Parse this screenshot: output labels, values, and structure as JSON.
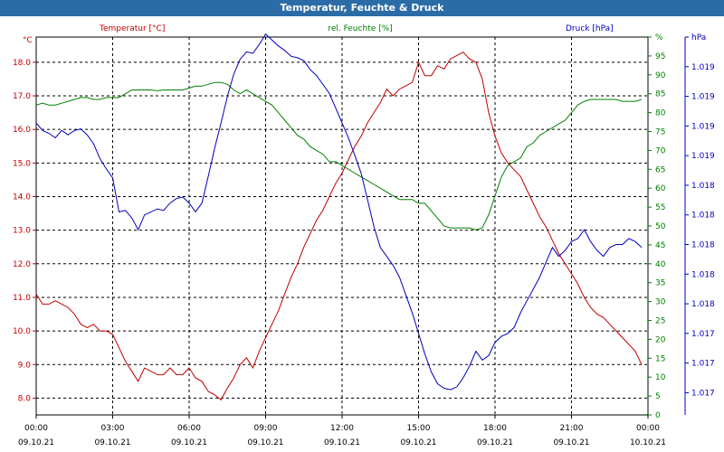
{
  "window": {
    "title": "Temperatur, Feuchte & Druck"
  },
  "colors": {
    "temperature": "#c00000",
    "humidity": "#008000",
    "pressure": "#0000c0",
    "title_bar": "#2b6ca6"
  },
  "chart_data": {
    "type": "line",
    "title": "Temperatur, Feuchte & Druck",
    "x_ticks": [
      {
        "hours": 0,
        "time": "00:00",
        "date": "09.10.21"
      },
      {
        "hours": 3,
        "time": "03:00",
        "date": "09.10.21"
      },
      {
        "hours": 6,
        "time": "06:00",
        "date": "09.10.21"
      },
      {
        "hours": 9,
        "time": "09:00",
        "date": "09.10.21"
      },
      {
        "hours": 12,
        "time": "12:00",
        "date": "09.10.21"
      },
      {
        "hours": 15,
        "time": "15:00",
        "date": "09.10.21"
      },
      {
        "hours": 18,
        "time": "18:00",
        "date": "09.10.21"
      },
      {
        "hours": 21,
        "time": "21:00",
        "date": "09.10.21"
      },
      {
        "hours": 24,
        "time": "00:00",
        "date": "10.10.21"
      }
    ],
    "xlim": [
      0,
      24
    ],
    "grid": true,
    "axes": {
      "temperature": {
        "label": "Temperatur [°C]",
        "unit": "°C",
        "ylim": [
          7.5,
          18.75
        ],
        "ticks": [
          8.0,
          9.0,
          10.0,
          11.0,
          12.0,
          13.0,
          14.0,
          15.0,
          16.0,
          17.0,
          18.0
        ],
        "tick_labels": [
          "8.0",
          "9.0",
          "10.0",
          "11.0",
          "12.0",
          "13.0",
          "14.0",
          "15.0",
          "16.0",
          "17.0",
          "18.0"
        ]
      },
      "humidity": {
        "label": "rel. Feuchte [%]",
        "unit": "%",
        "ylim": [
          0,
          100
        ],
        "ticks": [
          0,
          5,
          10,
          15,
          20,
          25,
          30,
          35,
          40,
          45,
          50,
          55,
          60,
          65,
          70,
          75,
          80,
          85,
          90,
          95,
          100
        ],
        "tick_labels": [
          "0",
          "5",
          "10",
          "15",
          "20",
          "25",
          "30",
          "35",
          "40",
          "45",
          "50",
          "55",
          "60",
          "65",
          "70",
          "75",
          "80",
          "85",
          "90",
          "95",
          "%"
        ]
      },
      "pressure": {
        "label": "Druck [hPa]",
        "unit": "hPa",
        "ylim": [
          1016.75,
          1019.3
        ],
        "ticks": [
          1016.9,
          1017.1,
          1017.3,
          1017.5,
          1017.7,
          1017.9,
          1018.1,
          1018.3,
          1018.5,
          1018.7,
          1018.9,
          1019.1,
          1019.3
        ],
        "tick_labels": [
          "1.017",
          "1.017",
          "1.017",
          "1.018",
          "1.018",
          "1.018",
          "1.018",
          "1.018",
          "1.019",
          "1.019",
          "1.019",
          "1.019",
          "hPa"
        ]
      }
    },
    "series": [
      {
        "name": "Temperatur [°C]",
        "axis": "temperature",
        "color": "#c00000",
        "x": [
          0,
          0.25,
          0.5,
          0.75,
          1.0,
          1.25,
          1.5,
          1.75,
          2.0,
          2.25,
          2.5,
          2.75,
          3.0,
          3.25,
          3.5,
          3.75,
          4.0,
          4.25,
          4.5,
          4.75,
          5.0,
          5.25,
          5.5,
          5.75,
          6.0,
          6.25,
          6.5,
          6.75,
          7.0,
          7.25,
          7.5,
          7.75,
          8.0,
          8.25,
          8.5,
          8.75,
          9.0,
          9.25,
          9.5,
          9.75,
          10.0,
          10.25,
          10.5,
          10.75,
          11.0,
          11.25,
          11.5,
          11.75,
          12.0,
          12.25,
          12.5,
          12.75,
          13.0,
          13.25,
          13.5,
          13.75,
          14.0,
          14.25,
          14.5,
          14.75,
          15.0,
          15.25,
          15.5,
          15.75,
          16.0,
          16.25,
          16.5,
          16.75,
          17.0,
          17.25,
          17.5,
          17.75,
          18.0,
          18.25,
          18.5,
          18.75,
          19.0,
          19.25,
          19.5,
          19.75,
          20.0,
          20.25,
          20.5,
          20.75,
          21.0,
          21.25,
          21.5,
          21.75,
          22.0,
          22.25,
          22.5,
          22.75,
          23.0,
          23.25,
          23.5,
          23.75
        ],
        "values": [
          11.1,
          10.8,
          10.8,
          10.9,
          10.8,
          10.7,
          10.5,
          10.2,
          10.1,
          10.2,
          10.0,
          10.0,
          9.9,
          9.5,
          9.1,
          8.8,
          8.5,
          8.9,
          8.8,
          8.7,
          8.7,
          8.9,
          8.7,
          8.7,
          8.9,
          8.6,
          8.5,
          8.2,
          8.1,
          7.95,
          8.3,
          8.6,
          9.0,
          9.2,
          8.9,
          9.4,
          9.8,
          10.2,
          10.6,
          11.1,
          11.6,
          12.0,
          12.5,
          12.9,
          13.3,
          13.6,
          14.0,
          14.4,
          14.7,
          15.1,
          15.5,
          15.8,
          16.2,
          16.5,
          16.8,
          17.2,
          17.0,
          17.2,
          17.3,
          17.4,
          18.0,
          17.6,
          17.6,
          17.9,
          17.8,
          18.1,
          18.2,
          18.3,
          18.1,
          18.0,
          17.5,
          16.5,
          15.8,
          15.3,
          15.0,
          14.8,
          14.6,
          14.2,
          13.8,
          13.4,
          13.1,
          12.7,
          12.3,
          12.0,
          11.7,
          11.4,
          11.0,
          10.7,
          10.5,
          10.4,
          10.2,
          10.0,
          9.8,
          9.6,
          9.4,
          9.0
        ]
      },
      {
        "name": "rel. Feuchte [%]",
        "axis": "humidity",
        "color": "#008000",
        "x": [
          0,
          0.25,
          0.5,
          0.75,
          1.0,
          1.25,
          1.5,
          1.75,
          2.0,
          2.25,
          2.5,
          2.75,
          3.0,
          3.25,
          3.5,
          3.75,
          4.0,
          4.25,
          4.5,
          4.75,
          5.0,
          5.25,
          5.5,
          5.75,
          6.0,
          6.25,
          6.5,
          6.75,
          7.0,
          7.25,
          7.5,
          7.75,
          8.0,
          8.25,
          8.5,
          8.75,
          9.0,
          9.25,
          9.5,
          9.75,
          10.0,
          10.25,
          10.5,
          10.75,
          11.0,
          11.25,
          11.5,
          11.75,
          12.0,
          12.25,
          12.5,
          12.75,
          13.0,
          13.25,
          13.5,
          13.75,
          14.0,
          14.25,
          14.5,
          14.75,
          15.0,
          15.25,
          15.5,
          15.75,
          16.0,
          16.25,
          16.5,
          16.75,
          17.0,
          17.25,
          17.5,
          17.75,
          18.0,
          18.25,
          18.5,
          18.75,
          19.0,
          19.25,
          19.5,
          19.75,
          20.0,
          20.25,
          20.5,
          20.75,
          21.0,
          21.25,
          21.5,
          21.75,
          22.0,
          22.25,
          22.5,
          22.75,
          23.0,
          23.25,
          23.5,
          23.75
        ],
        "values": [
          82,
          82.5,
          82,
          82,
          82.5,
          83,
          83.5,
          84,
          84,
          83.5,
          83.5,
          84,
          84,
          84,
          85,
          86,
          86,
          86,
          86,
          85.8,
          86,
          86,
          86,
          86,
          86.5,
          87,
          87,
          87.5,
          88,
          88,
          87.5,
          86,
          85,
          86,
          85,
          84,
          83,
          82,
          80,
          78,
          76,
          74,
          73,
          71,
          70,
          69,
          67,
          67,
          66,
          65,
          64,
          63,
          62,
          61,
          60,
          59,
          58,
          57,
          57,
          57,
          56,
          56,
          54,
          52,
          50,
          49.5,
          49.5,
          49.5,
          49.5,
          49,
          49.5,
          53,
          58,
          63,
          66,
          67,
          68,
          71,
          72,
          74,
          75,
          76,
          77,
          78,
          80,
          82,
          83,
          83.5,
          83.5,
          83.5,
          83.5,
          83.5,
          83,
          83,
          83,
          83.5
        ]
      },
      {
        "name": "Druck [hPa]",
        "axis": "pressure",
        "color": "#0000c0",
        "x": [
          0,
          0.25,
          0.5,
          0.75,
          1.0,
          1.25,
          1.5,
          1.75,
          2.0,
          2.25,
          2.5,
          2.75,
          3.0,
          3.25,
          3.5,
          3.75,
          4.0,
          4.25,
          4.5,
          4.75,
          5.0,
          5.25,
          5.5,
          5.75,
          6.0,
          6.25,
          6.5,
          6.75,
          7.0,
          7.25,
          7.5,
          7.75,
          8.0,
          8.25,
          8.5,
          8.75,
          9.0,
          9.25,
          9.5,
          9.75,
          10.0,
          10.25,
          10.5,
          10.75,
          11.0,
          11.25,
          11.5,
          11.75,
          12.0,
          12.25,
          12.5,
          12.75,
          13.0,
          13.25,
          13.5,
          13.75,
          14.0,
          14.25,
          14.5,
          14.75,
          15.0,
          15.25,
          15.5,
          15.75,
          16.0,
          16.25,
          16.5,
          16.75,
          17.0,
          17.25,
          17.5,
          17.75,
          18.0,
          18.25,
          18.5,
          18.75,
          19.0,
          19.25,
          19.5,
          19.75,
          20.0,
          20.25,
          20.5,
          20.75,
          21.0,
          21.25,
          21.5,
          21.75,
          22.0,
          22.25,
          22.5,
          22.75,
          23.0,
          23.25,
          23.5,
          23.75
        ],
        "values": [
          1018.72,
          1018.67,
          1018.65,
          1018.62,
          1018.67,
          1018.64,
          1018.67,
          1018.68,
          1018.64,
          1018.58,
          1018.48,
          1018.41,
          1018.35,
          1018.12,
          1018.13,
          1018.08,
          1018.0,
          1018.1,
          1018.12,
          1018.14,
          1018.13,
          1018.18,
          1018.21,
          1018.22,
          1018.18,
          1018.12,
          1018.18,
          1018.36,
          1018.55,
          1018.72,
          1018.9,
          1019.05,
          1019.15,
          1019.2,
          1019.19,
          1019.25,
          1019.32,
          1019.28,
          1019.24,
          1019.21,
          1019.17,
          1019.16,
          1019.14,
          1019.08,
          1019.04,
          1018.98,
          1018.92,
          1018.82,
          1018.72,
          1018.62,
          1018.5,
          1018.38,
          1018.2,
          1018.02,
          1017.88,
          1017.82,
          1017.76,
          1017.68,
          1017.56,
          1017.44,
          1017.3,
          1017.16,
          1017.04,
          1016.96,
          1016.93,
          1016.92,
          1016.94,
          1017.0,
          1017.08,
          1017.18,
          1017.12,
          1017.15,
          1017.24,
          1017.28,
          1017.3,
          1017.34,
          1017.44,
          1017.52,
          1017.6,
          1017.68,
          1017.78,
          1017.88,
          1017.82,
          1017.86,
          1017.92,
          1017.94,
          1018.0,
          1017.92,
          1017.86,
          1017.82,
          1017.88,
          1017.9,
          1017.9,
          1017.94,
          1017.92,
          1017.88
        ]
      }
    ]
  }
}
